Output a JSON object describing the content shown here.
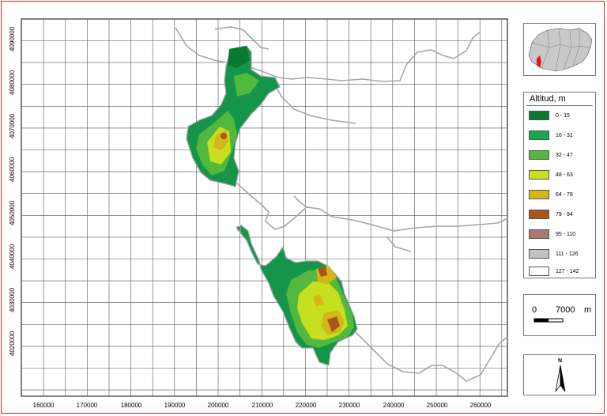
{
  "map": {
    "x_ticks": [
      "160000",
      "170000",
      "180000",
      "190000",
      "200000",
      "210000",
      "220000",
      "230000",
      "240000",
      "250000",
      "260000"
    ],
    "y_ticks": [
      "4090000",
      "4080000",
      "4070000",
      "4060000",
      "4050000",
      "4040000",
      "4030000",
      "4020000"
    ],
    "grid": true,
    "boundary_color": "#a6a6a6"
  },
  "legend": {
    "title": "Altitud, m",
    "items": [
      {
        "label": "0 - 15",
        "color": "#0a7a2e"
      },
      {
        "label": "16 - 31",
        "color": "#17a64a"
      },
      {
        "label": "32 - 47",
        "color": "#52b93e"
      },
      {
        "label": "48 - 63",
        "color": "#c6df1e"
      },
      {
        "label": "64 - 78",
        "color": "#d6b616"
      },
      {
        "label": "79 - 94",
        "color": "#a8561c"
      },
      {
        "label": "95 - 110",
        "color": "#a97a72"
      },
      {
        "label": "111 - 126",
        "color": "#c2c2c2"
      },
      {
        "label": "127 - 142",
        "color": "#ffffff"
      }
    ]
  },
  "scale": {
    "start": "0",
    "end": "7000",
    "unit": "m"
  },
  "north": {
    "label": "N"
  },
  "inset": {
    "icon": "andalucia-locator-map"
  }
}
